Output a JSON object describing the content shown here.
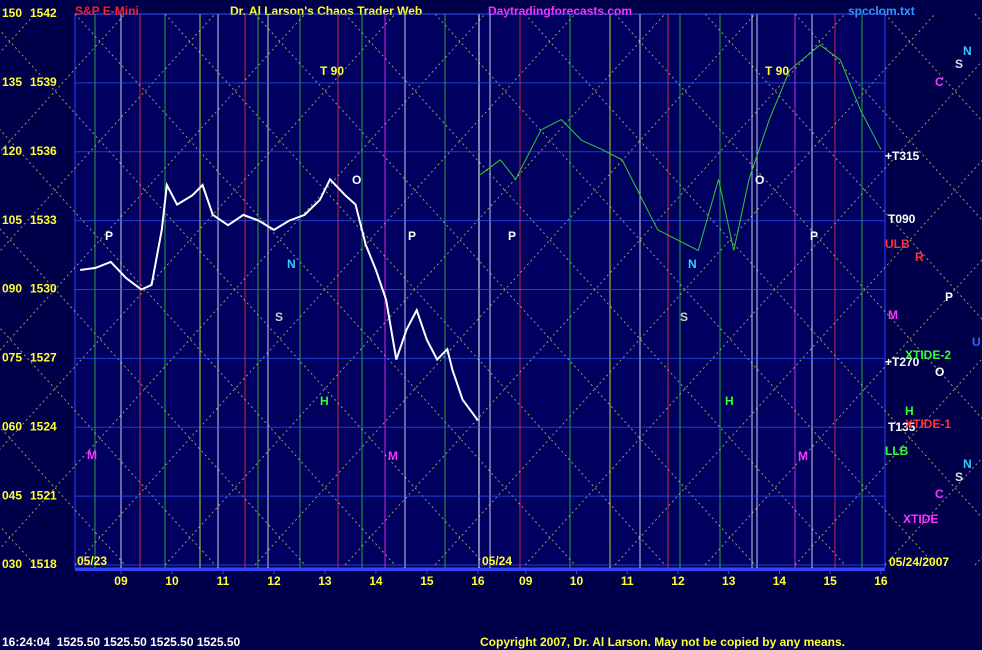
{
  "header": {
    "symbol": "S&P E-Mini",
    "title": "Dr. Al Larson's Chaos Trader Web",
    "site": "Daytradingforecasts.com",
    "file": "spcclom.txt"
  },
  "chart_data": [
    {
      "type": "line",
      "date": "05/23",
      "color": "#ffffff",
      "x": [
        8.2,
        8.5,
        8.8,
        9.1,
        9.4,
        9.6,
        9.8,
        9.9,
        10.1,
        10.4,
        10.6,
        10.8,
        11.1,
        11.4,
        11.7,
        12.0,
        12.3,
        12.6,
        12.9,
        13.1,
        13.4,
        13.6,
        13.8,
        14.0,
        14.2,
        14.4,
        14.6,
        14.8,
        15.0,
        15.2,
        15.4,
        15.5,
        15.7,
        16.0
      ],
      "values": [
        1530.85,
        1530.94,
        1531.2,
        1530.5,
        1530.0,
        1530.2,
        1532.6,
        1534.55,
        1533.7,
        1534.1,
        1534.55,
        1533.25,
        1532.8,
        1533.25,
        1533.0,
        1532.6,
        1533.0,
        1533.25,
        1533.9,
        1534.8,
        1534.1,
        1533.7,
        1531.95,
        1530.85,
        1529.55,
        1526.95,
        1528.25,
        1529.1,
        1527.8,
        1526.95,
        1527.4,
        1526.5,
        1525.2,
        1524.3
      ],
      "xlim": [
        8.0,
        16.1
      ],
      "xticks": [
        {
          "value": 9,
          "label": "09"
        },
        10,
        11,
        12,
        13,
        14,
        15,
        16
      ],
      "ylim": [
        1518,
        1542
      ],
      "yticks": [
        1518,
        1521,
        1524,
        1527,
        1530,
        1533,
        1536,
        1539,
        1542
      ],
      "y2lim": [
        30,
        150
      ],
      "y2ticks": [
        {
          "value": 30,
          "label": "030"
        },
        {
          "value": 45,
          "label": "045"
        },
        {
          "value": 60,
          "label": "060"
        },
        {
          "value": 75,
          "label": "075"
        },
        {
          "value": 90,
          "label": "090"
        },
        105,
        120,
        135,
        150
      ],
      "annotations": [
        "T 90",
        "P",
        "N",
        "S",
        "H",
        "M",
        "O",
        "M",
        "P"
      ]
    },
    {
      "type": "line",
      "date": "05/24",
      "end_date": "05/24/2007",
      "color": "#33cc33",
      "x": [
        8.1,
        8.5,
        8.8,
        9.3,
        9.7,
        10.1,
        10.5,
        10.9,
        11.3,
        11.6,
        12.0,
        12.4,
        12.8,
        13.1,
        13.4,
        13.8,
        14.2,
        14.8,
        15.2,
        15.6,
        16.0
      ],
      "values": [
        1535.0,
        1535.65,
        1534.8,
        1536.95,
        1537.4,
        1536.5,
        1536.1,
        1535.65,
        1533.9,
        1532.6,
        1532.15,
        1531.7,
        1534.8,
        1531.7,
        1534.8,
        1537.4,
        1539.55,
        1540.65,
        1540.0,
        1537.8,
        1536.1
      ],
      "xlim": [
        8.0,
        16.1
      ],
      "xticks": [
        {
          "value": 9,
          "label": "09"
        },
        10,
        11,
        12,
        13,
        14,
        15,
        16
      ],
      "ylim": [
        1518,
        1542
      ],
      "annotations": [
        "T 90",
        "P",
        "N",
        "S",
        "H",
        "M",
        "O",
        "P",
        "+T315",
        "T090",
        "ULB",
        "+T270",
        "XTIDE-2",
        "T135",
        "XTIDE-1",
        "LLB",
        "XTIDE",
        "N",
        "S",
        "C",
        "R",
        "P",
        "M",
        "U",
        "O",
        "H",
        "N",
        "S",
        "C"
      ]
    }
  ],
  "footer": {
    "quote": "16:24:04  1525.50 1525.50 1525.50 1525.50",
    "copyright": "Copyright 2007, Dr. Al Larson. May not be copied by any means."
  }
}
